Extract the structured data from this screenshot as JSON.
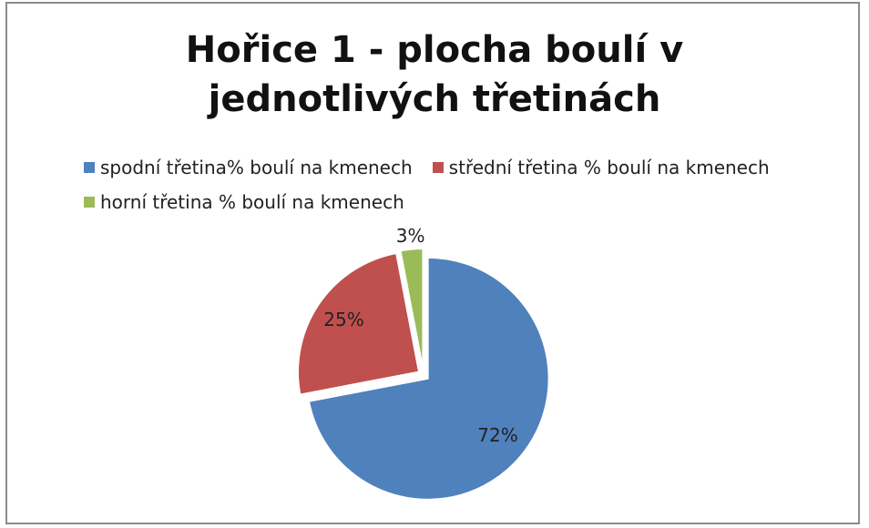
{
  "chart_data": {
    "type": "pie",
    "title": "Hořice 1 - plocha boulí v jednotlivých třetinách",
    "categories": [
      "spodní třetina% boulí na kmenech",
      "střední třetina % boulí na kmenech",
      "horní třetina % boulí na kmenech"
    ],
    "values": [
      72,
      25,
      3
    ],
    "value_labels": [
      "72%",
      "25%",
      "3%"
    ],
    "colors": [
      "#4f81bd",
      "#c0504d",
      "#9bbb59"
    ],
    "legend": "top"
  }
}
